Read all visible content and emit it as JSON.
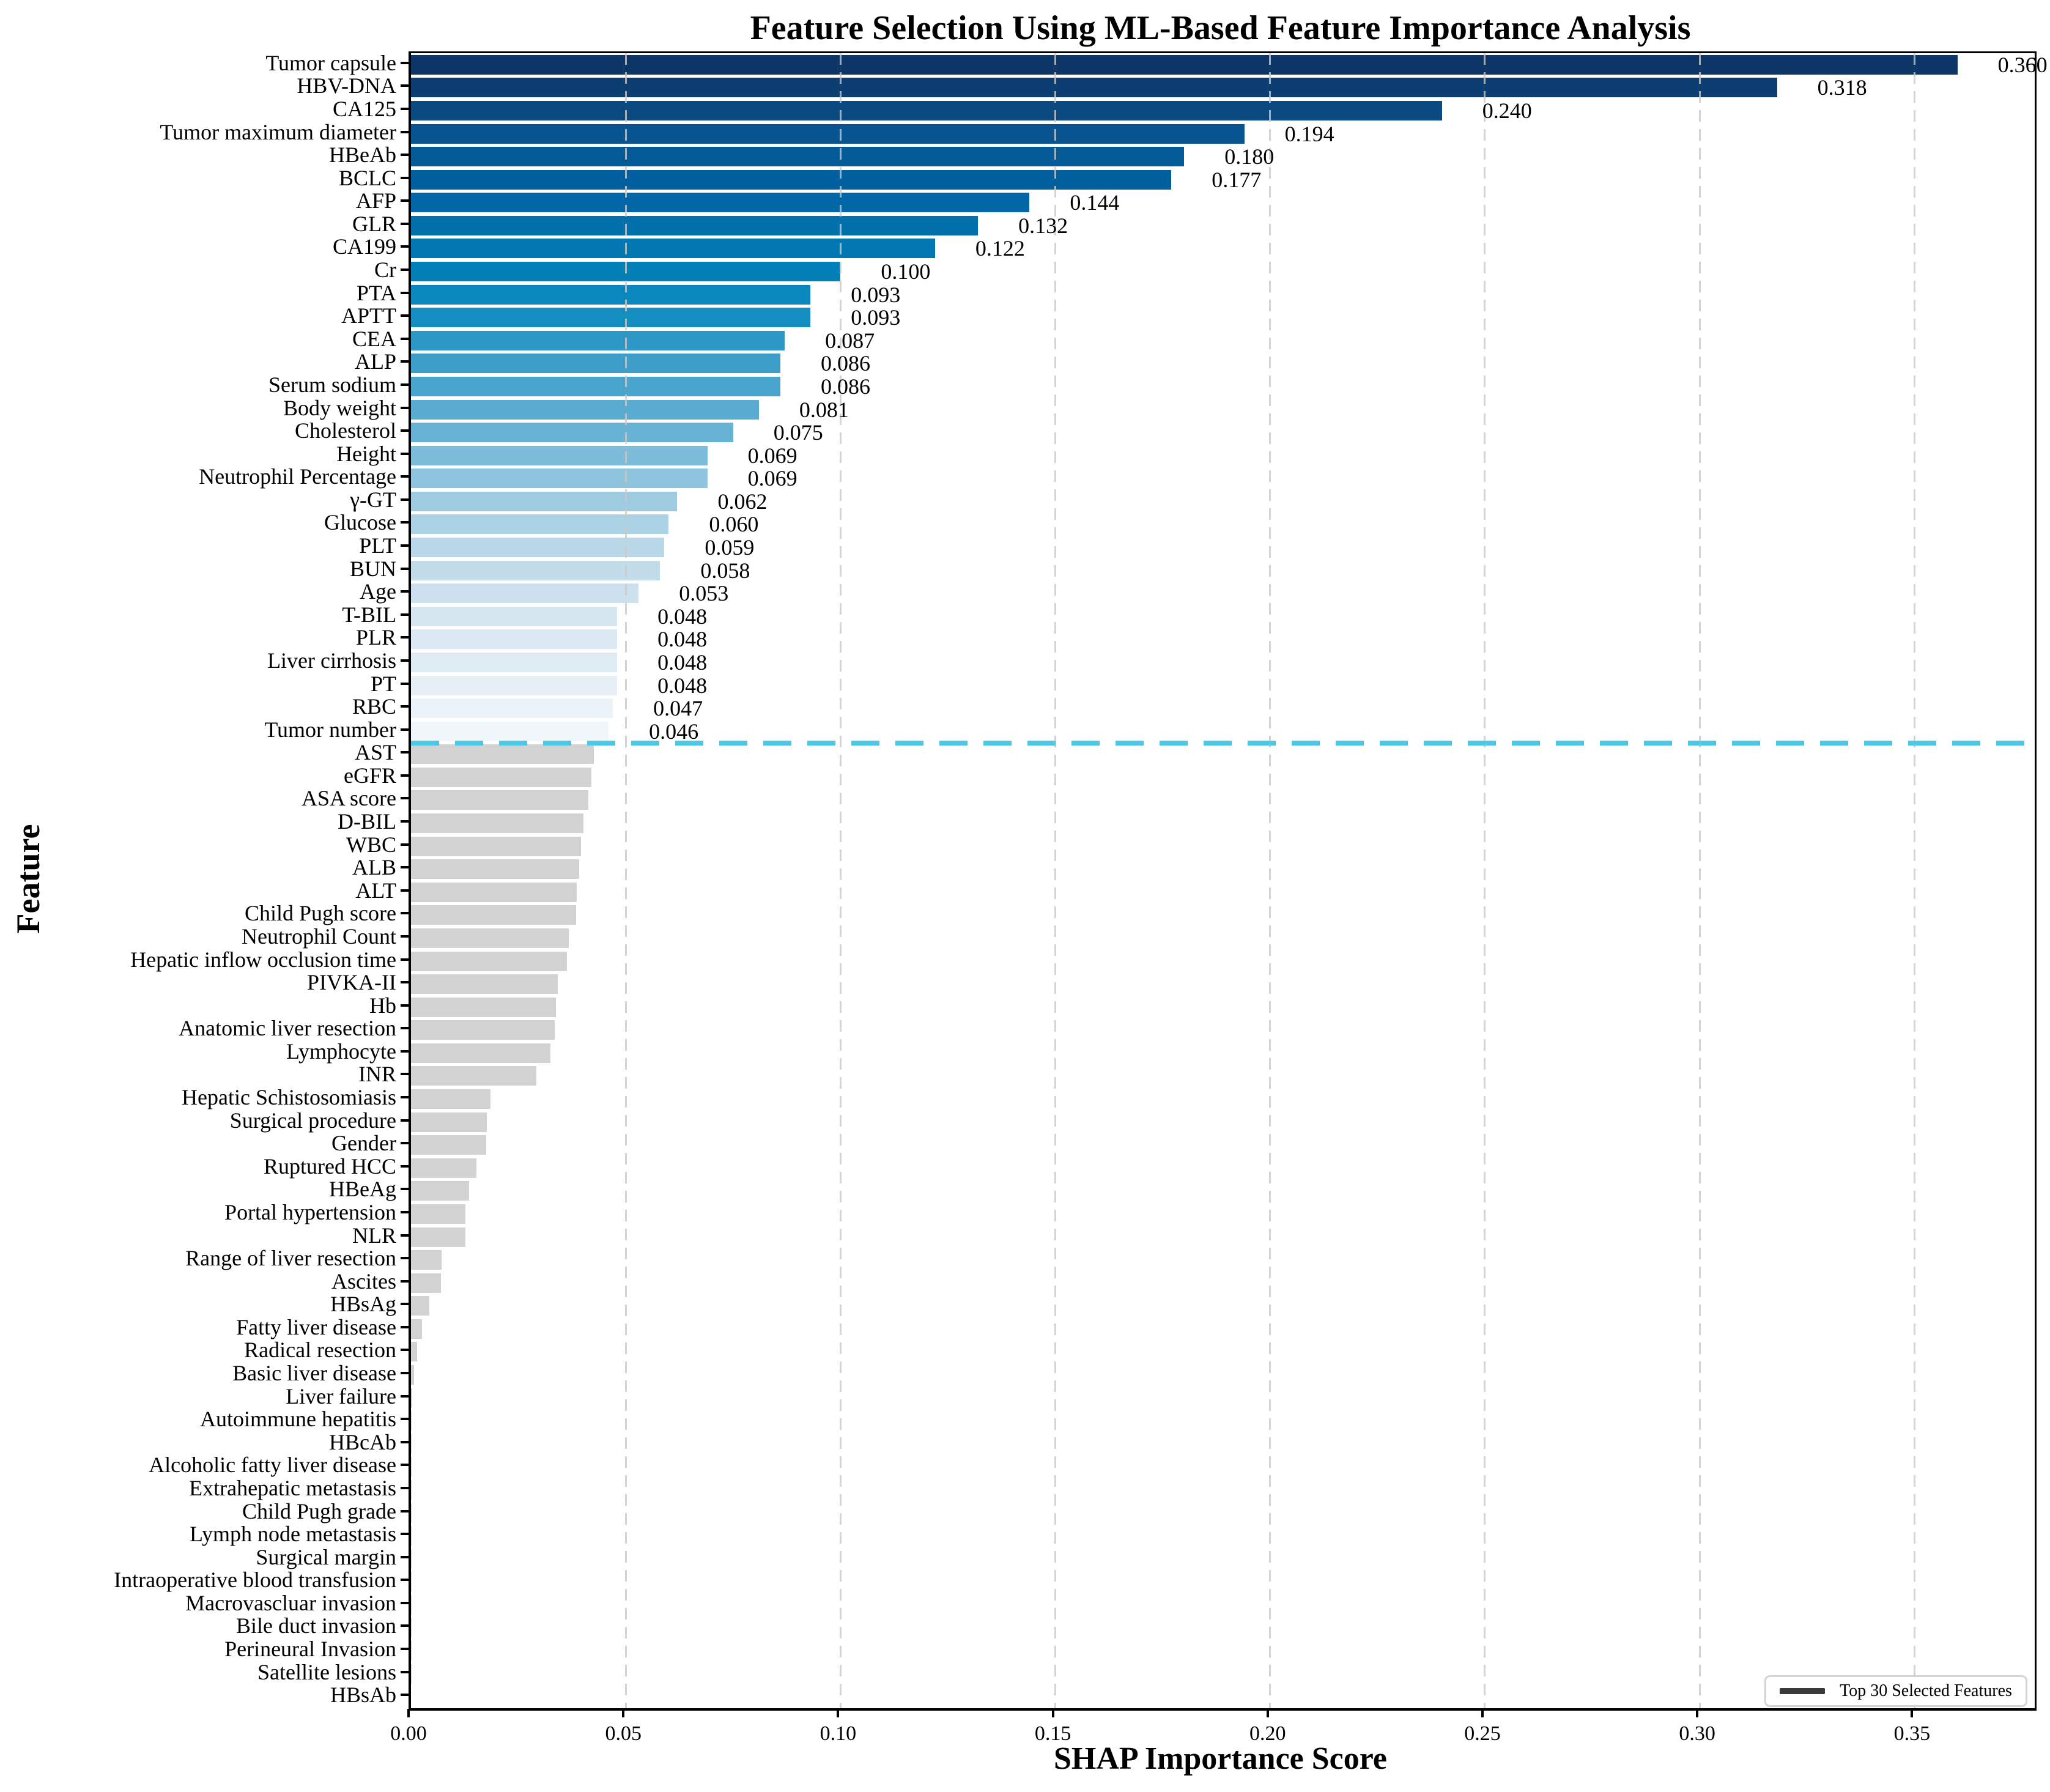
{
  "chart": {
    "title": "Feature Selection Using ML-Based Feature Importance Analysis",
    "xlabel": "SHAP Importance Score",
    "ylabel": "Feature",
    "legend_label": "Top 30 Selected Features"
  },
  "chart_data": {
    "type": "bar",
    "orientation": "horizontal",
    "title": "Feature Selection Using ML-Based Feature Importance Analysis",
    "xlabel": "SHAP Importance Score",
    "ylabel": "Feature",
    "xlim": [
      0,
      0.378
    ],
    "xticks": [
      "0.00",
      "0.05",
      "0.10",
      "0.15",
      "0.20",
      "0.25",
      "0.30",
      "0.35"
    ],
    "grid": "vertical dashed gridlines at x ticks",
    "legend": {
      "label": "Top 30 Selected Features",
      "position": "lower right"
    },
    "separator_after_rank": 30,
    "colors": {
      "selected_gradient": [
        "#0d3667",
        "#0c3e72",
        "#0a4a81",
        "#085490",
        "#045a97",
        "#02609e",
        "#0167a6",
        "#0270ab",
        "#0277b1",
        "#0480b8",
        "#0a87bd",
        "#148dc1",
        "#2d97c6",
        "#3c9ec9",
        "#4aa5ce",
        "#59abd1",
        "#68b3d5",
        "#7cbcd9",
        "#8ec4dd",
        "#9ecbe0",
        "#abd2e5",
        "#b8d8e8",
        "#c2dcea",
        "#cce1ed",
        "#d5e6f0",
        "#dbe9f2",
        "#e0ecf4",
        "#e6eff6",
        "#ebf3f8",
        "#f0f6fa"
      ],
      "unselected": "#d2d2d2",
      "separator": "#4dc9e6",
      "legend_line": "#3a3a3a",
      "grid": "#c9c9c9"
    },
    "features": [
      {
        "name": "Tumor capsule",
        "value": 0.36,
        "label": "0.360",
        "selected": true
      },
      {
        "name": "HBV-DNA",
        "value": 0.318,
        "label": "0.318",
        "selected": true
      },
      {
        "name": "CA125",
        "value": 0.24,
        "label": "0.240",
        "selected": true
      },
      {
        "name": "Tumor maximum diameter",
        "value": 0.194,
        "label": "0.194",
        "selected": true
      },
      {
        "name": "HBeAb",
        "value": 0.18,
        "label": "0.180",
        "selected": true
      },
      {
        "name": "BCLC",
        "value": 0.177,
        "label": "0.177",
        "selected": true
      },
      {
        "name": "AFP",
        "value": 0.144,
        "label": "0.144",
        "selected": true
      },
      {
        "name": "GLR",
        "value": 0.132,
        "label": "0.132",
        "selected": true
      },
      {
        "name": "CA199",
        "value": 0.122,
        "label": "0.122",
        "selected": true
      },
      {
        "name": "Cr",
        "value": 0.1,
        "label": "0.100",
        "selected": true
      },
      {
        "name": "PTA",
        "value": 0.093,
        "label": "0.093",
        "selected": true
      },
      {
        "name": "APTT",
        "value": 0.093,
        "label": "0.093",
        "selected": true
      },
      {
        "name": "CEA",
        "value": 0.087,
        "label": "0.087",
        "selected": true
      },
      {
        "name": "ALP",
        "value": 0.086,
        "label": "0.086",
        "selected": true
      },
      {
        "name": "Serum sodium",
        "value": 0.086,
        "label": "0.086",
        "selected": true
      },
      {
        "name": "Body weight",
        "value": 0.081,
        "label": "0.081",
        "selected": true
      },
      {
        "name": "Cholesterol",
        "value": 0.075,
        "label": "0.075",
        "selected": true
      },
      {
        "name": "Height",
        "value": 0.069,
        "label": "0.069",
        "selected": true
      },
      {
        "name": "Neutrophil Percentage",
        "value": 0.069,
        "label": "0.069",
        "selected": true
      },
      {
        "name": "γ-GT",
        "value": 0.062,
        "label": "0.062",
        "selected": true
      },
      {
        "name": "Glucose",
        "value": 0.06,
        "label": "0.060",
        "selected": true
      },
      {
        "name": "PLT",
        "value": 0.059,
        "label": "0.059",
        "selected": true
      },
      {
        "name": "BUN",
        "value": 0.058,
        "label": "0.058",
        "selected": true
      },
      {
        "name": "Age",
        "value": 0.053,
        "label": "0.053",
        "selected": true
      },
      {
        "name": "T-BIL",
        "value": 0.048,
        "label": "0.048",
        "selected": true
      },
      {
        "name": "PLR",
        "value": 0.048,
        "label": "0.048",
        "selected": true
      },
      {
        "name": "Liver cirrhosis",
        "value": 0.048,
        "label": "0.048",
        "selected": true
      },
      {
        "name": "PT",
        "value": 0.048,
        "label": "0.048",
        "selected": true
      },
      {
        "name": "RBC",
        "value": 0.047,
        "label": "0.047",
        "selected": true
      },
      {
        "name": "Tumor number",
        "value": 0.046,
        "label": "0.046",
        "selected": true
      },
      {
        "name": "AST",
        "value": 0.0425,
        "label": null,
        "selected": false
      },
      {
        "name": "eGFR",
        "value": 0.042,
        "label": null,
        "selected": false
      },
      {
        "name": "ASA score",
        "value": 0.0413,
        "label": null,
        "selected": false
      },
      {
        "name": "D-BIL",
        "value": 0.0402,
        "label": null,
        "selected": false
      },
      {
        "name": "WBC",
        "value": 0.0396,
        "label": null,
        "selected": false
      },
      {
        "name": "ALB",
        "value": 0.0392,
        "label": null,
        "selected": false
      },
      {
        "name": "ALT",
        "value": 0.0386,
        "label": null,
        "selected": false
      },
      {
        "name": "Child Pugh score",
        "value": 0.0384,
        "label": null,
        "selected": false
      },
      {
        "name": "Neutrophil Count",
        "value": 0.0367,
        "label": null,
        "selected": false
      },
      {
        "name": "Hepatic inflow occlusion time",
        "value": 0.0363,
        "label": null,
        "selected": false
      },
      {
        "name": "PIVKA-II",
        "value": 0.0341,
        "label": null,
        "selected": false
      },
      {
        "name": "Hb",
        "value": 0.0338,
        "label": null,
        "selected": false
      },
      {
        "name": "Anatomic liver resection",
        "value": 0.0334,
        "label": null,
        "selected": false
      },
      {
        "name": "Lymphocyte",
        "value": 0.0325,
        "label": null,
        "selected": false
      },
      {
        "name": "INR",
        "value": 0.0292,
        "label": null,
        "selected": false
      },
      {
        "name": "Hepatic Schistosomiasis",
        "value": 0.0185,
        "label": null,
        "selected": false
      },
      {
        "name": "Surgical procedure",
        "value": 0.0176,
        "label": null,
        "selected": false
      },
      {
        "name": "Gender",
        "value": 0.0175,
        "label": null,
        "selected": false
      },
      {
        "name": "Ruptured HCC",
        "value": 0.0152,
        "label": null,
        "selected": false
      },
      {
        "name": "HBeAg",
        "value": 0.0135,
        "label": null,
        "selected": false
      },
      {
        "name": "Portal hypertension",
        "value": 0.0127,
        "label": null,
        "selected": false
      },
      {
        "name": "NLR",
        "value": 0.0126,
        "label": null,
        "selected": false
      },
      {
        "name": "Range of liver resection",
        "value": 0.0071,
        "label": null,
        "selected": false
      },
      {
        "name": "Ascites",
        "value": 0.007,
        "label": null,
        "selected": false
      },
      {
        "name": "HBsAg",
        "value": 0.0042,
        "label": null,
        "selected": false
      },
      {
        "name": "Fatty liver disease",
        "value": 0.0025,
        "label": null,
        "selected": false
      },
      {
        "name": "Radical resection",
        "value": 0.0014,
        "label": null,
        "selected": false
      },
      {
        "name": "Basic liver disease",
        "value": 0.0007,
        "label": null,
        "selected": false
      },
      {
        "name": "Liver failure",
        "value": 0.0003,
        "label": null,
        "selected": false
      },
      {
        "name": "Autoimmune hepatitis",
        "value": 0.0002,
        "label": null,
        "selected": false
      },
      {
        "name": "HBcAb",
        "value": 0.0002,
        "label": null,
        "selected": false
      },
      {
        "name": "Alcoholic fatty liver disease",
        "value": 0.0001,
        "label": null,
        "selected": false
      },
      {
        "name": "Extrahepatic metastasis",
        "value": 0.0001,
        "label": null,
        "selected": false
      },
      {
        "name": "Child Pugh grade",
        "value": 0.0001,
        "label": null,
        "selected": false
      },
      {
        "name": "Lymph node metastasis",
        "value": 0.0001,
        "label": null,
        "selected": false
      },
      {
        "name": "Surgical margin",
        "value": 5e-05,
        "label": null,
        "selected": false
      },
      {
        "name": "Intraoperative blood transfusion",
        "value": 5e-05,
        "label": null,
        "selected": false
      },
      {
        "name": "Macrovascluar invasion",
        "value": 4e-05,
        "label": null,
        "selected": false
      },
      {
        "name": "Bile duct invasion",
        "value": 3e-05,
        "label": null,
        "selected": false
      },
      {
        "name": "Perineural Invasion",
        "value": 2e-05,
        "label": null,
        "selected": false
      },
      {
        "name": "Satellite lesions",
        "value": 2e-05,
        "label": null,
        "selected": false
      },
      {
        "name": "HBsAb",
        "value": 1e-05,
        "label": null,
        "selected": false
      }
    ]
  }
}
